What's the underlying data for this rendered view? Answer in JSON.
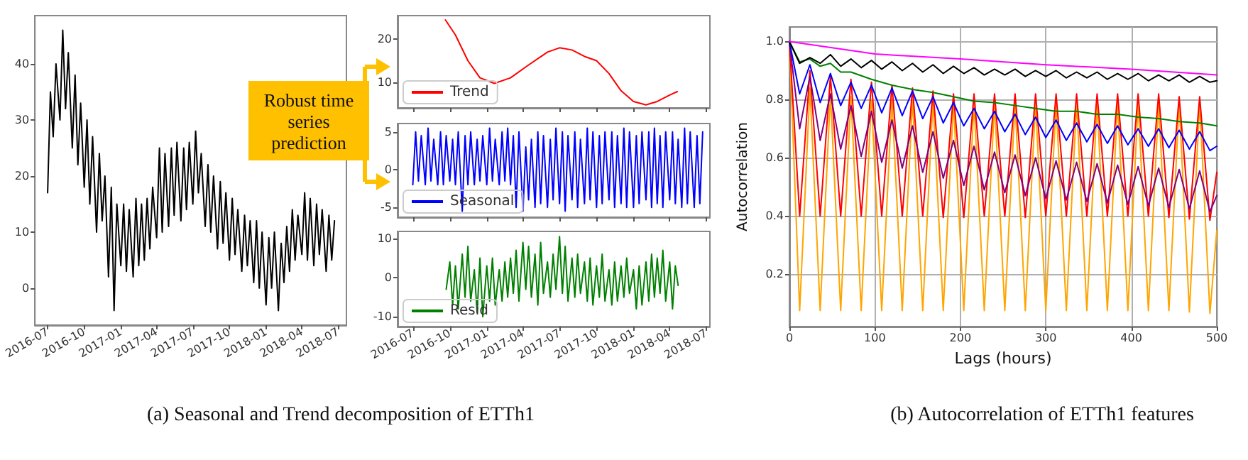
{
  "chart_data": [
    {
      "type": "line",
      "annotations": [
        "Robust time series prediction",
        "(a) Seasonal and Trend decomposition of ETTh1"
      ],
      "x": [
        "2016-07-01",
        "2016-07-08",
        "2016-07-15",
        "2016-07-22",
        "2016-08-01",
        "2016-08-08",
        "2016-08-15",
        "2016-08-22",
        "2016-09-01",
        "2016-09-08",
        "2016-09-15",
        "2016-09-22",
        "2016-10-01",
        "2016-10-08",
        "2016-10-15",
        "2016-10-22",
        "2016-11-01",
        "2016-11-08",
        "2016-11-15",
        "2016-11-22",
        "2016-12-01",
        "2016-12-08",
        "2016-12-15",
        "2016-12-22",
        "2017-01-01",
        "2017-01-08",
        "2017-01-15",
        "2017-01-22",
        "2017-02-01",
        "2017-02-08",
        "2017-02-15",
        "2017-02-22",
        "2017-03-01",
        "2017-03-08",
        "2017-03-15",
        "2017-03-22",
        "2017-04-01",
        "2017-04-08",
        "2017-04-15",
        "2017-04-22",
        "2017-05-01",
        "2017-05-08",
        "2017-05-15",
        "2017-05-22",
        "2017-06-01",
        "2017-06-08",
        "2017-06-15",
        "2017-06-22",
        "2017-07-01",
        "2017-07-08",
        "2017-07-15",
        "2017-07-22",
        "2017-08-01",
        "2017-08-08",
        "2017-08-15",
        "2017-08-22",
        "2017-09-01",
        "2017-09-08",
        "2017-09-15",
        "2017-09-22",
        "2017-10-01",
        "2017-10-08",
        "2017-10-15",
        "2017-10-22",
        "2017-11-01",
        "2017-11-08",
        "2017-11-15",
        "2017-11-22",
        "2017-12-01",
        "2017-12-08",
        "2017-12-15",
        "2017-12-22",
        "2018-01-01",
        "2018-01-08",
        "2018-01-15",
        "2018-01-22",
        "2018-02-01",
        "2018-02-08",
        "2018-02-15",
        "2018-02-22",
        "2018-03-01",
        "2018-03-08",
        "2018-03-15",
        "2018-03-22",
        "2018-04-01",
        "2018-04-08",
        "2018-04-15",
        "2018-04-22",
        "2018-05-01",
        "2018-05-08",
        "2018-05-15",
        "2018-05-22",
        "2018-06-01",
        "2018-06-08",
        "2018-06-15",
        "2018-06-22"
      ],
      "series": [
        {
          "color": "#000000",
          "values": [
            17,
            35,
            27,
            40,
            30,
            46,
            32,
            42,
            25,
            38,
            22,
            33,
            18,
            30,
            15,
            27,
            10,
            24,
            12,
            20,
            2,
            18,
            -4,
            15,
            4,
            15,
            3,
            14,
            2,
            16,
            4,
            15,
            5,
            16,
            7,
            18,
            9,
            25,
            10,
            24,
            11,
            25,
            13,
            26,
            12,
            25,
            14,
            26,
            15,
            28,
            17,
            24,
            11,
            22,
            10,
            20,
            7,
            19,
            8,
            17,
            5,
            16,
            6,
            14,
            3,
            13,
            4,
            12,
            1,
            12,
            0,
            10,
            -3,
            9,
            0,
            10,
            -4,
            8,
            1,
            11,
            3,
            14,
            5,
            13,
            6,
            17,
            5,
            16,
            4,
            15,
            6,
            14,
            3,
            13,
            5,
            12
          ]
        }
      ],
      "xlim": [
        "2016-05-30",
        "2018-07-22"
      ],
      "ylim": [
        -6.6,
        48.6
      ],
      "xticks": [
        "2016-07",
        "2016-10",
        "2017-01",
        "2017-04",
        "2017-07",
        "2017-10",
        "2018-01",
        "2018-04",
        "2018-07"
      ],
      "yticks": [
        0,
        10,
        20,
        30,
        40
      ]
    },
    {
      "type": "line",
      "legend": "lower left",
      "tick_labels": "y",
      "x": [
        "2016-09-20",
        "2016-10-15",
        "2016-11-15",
        "2016-12-15",
        "2017-01-20",
        "2017-03-01",
        "2017-04-15",
        "2017-06-01",
        "2017-07-01",
        "2017-08-01",
        "2017-09-01",
        "2017-10-01",
        "2017-11-01",
        "2017-12-01",
        "2018-01-01",
        "2018-02-01",
        "2018-03-01",
        "2018-04-01",
        "2018-04-20"
      ],
      "series": [
        {
          "name": "Trend",
          "color": "#ff0000",
          "values": [
            24.5,
            21,
            15,
            11,
            9.7,
            11,
            14,
            17,
            18,
            17.5,
            16,
            15,
            12,
            8,
            5.5,
            4.7,
            5.5,
            7,
            7.8
          ]
        }
      ],
      "xlim": [
        "2016-05-24",
        "2018-07-10"
      ],
      "ylim": [
        4,
        25.5
      ],
      "xticks": [
        "2016-07",
        "2016-10",
        "2017-01",
        "2017-04",
        "2017-07",
        "2017-10",
        "2018-01",
        "2018-04",
        "2018-07"
      ],
      "yticks": [
        10,
        20
      ]
    },
    {
      "type": "line",
      "legend": "lower left",
      "tick_labels": "y",
      "x": [
        "2016-07-01",
        "2016-07-08",
        "2016-07-15",
        "2016-07-22",
        "2016-08-01",
        "2016-08-08",
        "2016-08-15",
        "2016-08-22",
        "2016-09-01",
        "2016-09-08",
        "2016-09-15",
        "2016-09-22",
        "2016-10-01",
        "2016-10-08",
        "2016-10-15",
        "2016-10-22",
        "2016-11-01",
        "2016-11-08",
        "2016-11-15",
        "2016-11-22",
        "2016-12-01",
        "2016-12-08",
        "2016-12-15",
        "2016-12-22",
        "2017-01-01",
        "2017-01-08",
        "2017-01-15",
        "2017-01-22",
        "2017-02-01",
        "2017-02-08",
        "2017-02-15",
        "2017-02-22",
        "2017-03-01",
        "2017-03-08",
        "2017-03-15",
        "2017-03-22",
        "2017-04-01",
        "2017-04-08",
        "2017-04-15",
        "2017-04-22",
        "2017-05-01",
        "2017-05-08",
        "2017-05-15",
        "2017-05-22",
        "2017-06-01",
        "2017-06-08",
        "2017-06-15",
        "2017-06-22",
        "2017-07-01",
        "2017-07-08",
        "2017-07-15",
        "2017-07-22",
        "2017-08-01",
        "2017-08-08",
        "2017-08-15",
        "2017-08-22",
        "2017-09-01",
        "2017-09-08",
        "2017-09-15",
        "2017-09-22",
        "2017-10-01",
        "2017-10-08",
        "2017-10-15",
        "2017-10-22",
        "2017-11-01",
        "2017-11-08",
        "2017-11-15",
        "2017-11-22",
        "2017-12-01",
        "2017-12-08",
        "2017-12-15",
        "2017-12-22",
        "2018-01-01",
        "2018-01-08",
        "2018-01-15",
        "2018-01-22",
        "2018-02-01",
        "2018-02-08",
        "2018-02-15",
        "2018-02-22",
        "2018-03-01",
        "2018-03-08",
        "2018-03-15",
        "2018-03-22",
        "2018-04-01",
        "2018-04-08",
        "2018-04-15",
        "2018-04-22",
        "2018-05-01",
        "2018-05-08",
        "2018-05-15",
        "2018-05-22",
        "2018-06-01",
        "2018-06-08",
        "2018-06-15",
        "2018-06-22"
      ],
      "series": [
        {
          "name": "Seasonal",
          "color": "#0000ff",
          "values": [
            -2,
            5,
            -1.5,
            4.5,
            -2,
            5.5,
            -1.5,
            4,
            -2,
            5,
            -2,
            4.5,
            -1.5,
            4,
            -2,
            5,
            -5.5,
            4.5,
            -2,
            5,
            -2,
            4,
            -1.5,
            4.5,
            -2,
            5.5,
            -1.5,
            4,
            -2,
            5,
            -1.5,
            5.5,
            -2,
            4.5,
            -5,
            5,
            -5.5,
            3,
            -4,
            4,
            -5,
            5,
            -4.5,
            4.5,
            -5,
            4,
            -4,
            5.5,
            -4.5,
            5,
            -5.5,
            4.5,
            -4,
            5,
            -5,
            4,
            -4.5,
            5.5,
            -4,
            5,
            -5,
            4.5,
            -4.5,
            5,
            -4,
            5,
            -5,
            4.5,
            -4.5,
            5.5,
            -5,
            5,
            -5,
            4.5,
            -4.5,
            5,
            -4,
            5,
            -5,
            5.5,
            -4.5,
            4.5,
            -5,
            5,
            -4,
            5,
            -4.5,
            4,
            -5,
            5.5,
            -4.5,
            5,
            -5,
            4.5,
            -4.5,
            5
          ]
        }
      ],
      "xlim": [
        "2016-05-24",
        "2018-07-10"
      ],
      "ylim": [
        -6.3,
        6.1
      ],
      "xticks": [
        "2016-07",
        "2016-10",
        "2017-01",
        "2017-04",
        "2017-07",
        "2017-10",
        "2018-01",
        "2018-04",
        "2018-07"
      ],
      "yticks": [
        -5,
        0,
        5
      ]
    },
    {
      "type": "line",
      "legend": "lower left",
      "x": [
        "2016-09-22",
        "2016-10-01",
        "2016-10-08",
        "2016-10-15",
        "2016-10-22",
        "2016-11-01",
        "2016-11-08",
        "2016-11-15",
        "2016-11-22",
        "2016-12-01",
        "2016-12-08",
        "2016-12-15",
        "2016-12-22",
        "2017-01-01",
        "2017-01-08",
        "2017-01-15",
        "2017-01-22",
        "2017-02-01",
        "2017-02-08",
        "2017-02-15",
        "2017-02-22",
        "2017-03-01",
        "2017-03-08",
        "2017-03-15",
        "2017-03-22",
        "2017-04-01",
        "2017-04-08",
        "2017-04-15",
        "2017-04-22",
        "2017-05-01",
        "2017-05-08",
        "2017-05-15",
        "2017-05-22",
        "2017-06-01",
        "2017-06-08",
        "2017-06-15",
        "2017-06-22",
        "2017-07-01",
        "2017-07-08",
        "2017-07-15",
        "2017-07-22",
        "2017-08-01",
        "2017-08-08",
        "2017-08-15",
        "2017-08-22",
        "2017-09-01",
        "2017-09-08",
        "2017-09-15",
        "2017-09-22",
        "2017-10-01",
        "2017-10-08",
        "2017-10-15",
        "2017-10-22",
        "2017-11-01",
        "2017-11-08",
        "2017-11-15",
        "2017-11-22",
        "2017-12-01",
        "2017-12-08",
        "2017-12-15",
        "2017-12-22",
        "2018-01-01",
        "2018-01-08",
        "2018-01-15",
        "2018-01-22",
        "2018-02-01",
        "2018-02-08",
        "2018-02-15",
        "2018-02-22",
        "2018-03-01",
        "2018-03-08",
        "2018-03-15",
        "2018-03-22",
        "2018-04-01",
        "2018-04-08",
        "2018-04-15",
        "2018-04-22"
      ],
      "series": [
        {
          "name": "Resid",
          "color": "#008000",
          "values": [
            -3,
            4,
            -7,
            3,
            -8,
            6,
            -5,
            8,
            -6,
            2,
            -9,
            5,
            -10,
            3,
            -6,
            5,
            -7,
            2,
            -6,
            4,
            -5,
            5,
            -4,
            7,
            -6,
            9,
            -3,
            8,
            -5,
            6,
            -7,
            9,
            -4,
            4,
            -5,
            6,
            -3,
            10.5,
            -4,
            8,
            -6,
            5,
            -5,
            6,
            -4,
            4,
            -6,
            5,
            -7,
            3,
            -5,
            6,
            -6,
            2,
            -7,
            4,
            -6,
            3,
            -5,
            5,
            -4,
            2,
            -8,
            3,
            -7,
            4,
            -6,
            6,
            -5,
            5,
            -4,
            7,
            -6,
            4,
            -8,
            3,
            -2
          ]
        }
      ],
      "xlim": [
        "2016-05-24",
        "2018-07-10"
      ],
      "ylim": [
        -12.5,
        11.8
      ],
      "xticks": [
        "2016-07",
        "2016-10",
        "2017-01",
        "2017-04",
        "2017-07",
        "2017-10",
        "2018-01",
        "2018-04",
        "2018-07"
      ],
      "yticks": [
        -10,
        0,
        10
      ]
    },
    {
      "type": "line",
      "xlabel": "Lags (hours)",
      "ylabel": "Autocorrelation",
      "grid": true,
      "annotations": [
        "(b) Autocorrelation of ETTh1 features"
      ],
      "xlim": [
        0,
        500
      ],
      "ylim": [
        0.02,
        1.05
      ],
      "xticks": [
        0,
        100,
        200,
        300,
        400,
        500
      ],
      "yticks": [
        0.2,
        0.4,
        0.6,
        {
          "value": 0.8,
          "label": "0.8"
        },
        {
          "value": 1,
          "label": "1.0"
        }
      ],
      "series": [
        {
          "color": "#ffa500",
          "x": [
            0,
            12,
            24,
            36,
            48,
            60,
            72,
            84,
            96,
            108,
            120,
            132,
            144,
            156,
            168,
            180,
            192,
            204,
            216,
            228,
            240,
            252,
            264,
            276,
            288,
            300,
            312,
            324,
            336,
            348,
            360,
            372,
            384,
            396,
            408,
            420,
            432,
            444,
            456,
            468,
            480,
            492,
            500
          ],
          "values": [
            1,
            0.075,
            0.84,
            0.075,
            0.82,
            0.075,
            0.81,
            0.075,
            0.8,
            0.075,
            0.8,
            0.075,
            0.8,
            0.075,
            0.8,
            0.075,
            0.79,
            0.075,
            0.79,
            0.075,
            0.79,
            0.075,
            0.79,
            0.075,
            0.79,
            0.075,
            0.79,
            0.075,
            0.79,
            0.075,
            0.79,
            0.075,
            0.79,
            0.075,
            0.79,
            0.075,
            0.79,
            0.075,
            0.79,
            0.07,
            0.79,
            0.065,
            0.35
          ]
        },
        {
          "color": "#ff0000",
          "x": [
            0,
            12,
            24,
            36,
            48,
            60,
            72,
            84,
            96,
            108,
            120,
            132,
            144,
            156,
            168,
            180,
            192,
            204,
            216,
            228,
            240,
            252,
            264,
            276,
            288,
            300,
            312,
            324,
            336,
            348,
            360,
            372,
            384,
            396,
            408,
            420,
            432,
            444,
            456,
            468,
            480,
            492,
            500
          ],
          "values": [
            1,
            0.4,
            0.9,
            0.4,
            0.88,
            0.4,
            0.87,
            0.4,
            0.86,
            0.4,
            0.85,
            0.4,
            0.84,
            0.4,
            0.83,
            0.395,
            0.82,
            0.395,
            0.82,
            0.4,
            0.82,
            0.4,
            0.82,
            0.395,
            0.82,
            0.4,
            0.82,
            0.4,
            0.82,
            0.4,
            0.82,
            0.4,
            0.82,
            0.4,
            0.82,
            0.4,
            0.82,
            0.395,
            0.81,
            0.39,
            0.81,
            0.385,
            0.55
          ]
        },
        {
          "color": "#800080",
          "x": [
            0,
            12,
            24,
            36,
            48,
            60,
            72,
            84,
            96,
            108,
            120,
            132,
            144,
            156,
            168,
            180,
            192,
            204,
            216,
            228,
            240,
            252,
            264,
            276,
            288,
            300,
            312,
            324,
            336,
            348,
            360,
            372,
            384,
            396,
            408,
            420,
            432,
            444,
            456,
            468,
            480,
            492,
            500
          ],
          "values": [
            1,
            0.7,
            0.88,
            0.66,
            0.82,
            0.63,
            0.78,
            0.605,
            0.76,
            0.585,
            0.73,
            0.565,
            0.71,
            0.55,
            0.69,
            0.53,
            0.66,
            0.505,
            0.64,
            0.49,
            0.62,
            0.48,
            0.61,
            0.47,
            0.6,
            0.46,
            0.59,
            0.455,
            0.585,
            0.45,
            0.58,
            0.445,
            0.575,
            0.44,
            0.57,
            0.435,
            0.565,
            0.43,
            0.56,
            0.425,
            0.555,
            0.415,
            0.47
          ]
        },
        {
          "color": "#0000ff",
          "x": [
            0,
            12,
            24,
            36,
            48,
            60,
            72,
            84,
            96,
            108,
            120,
            132,
            144,
            156,
            168,
            180,
            192,
            204,
            216,
            228,
            240,
            252,
            264,
            276,
            288,
            300,
            312,
            324,
            336,
            348,
            360,
            372,
            384,
            396,
            408,
            420,
            432,
            444,
            456,
            468,
            480,
            492,
            500
          ],
          "values": [
            1,
            0.82,
            0.92,
            0.79,
            0.89,
            0.78,
            0.86,
            0.77,
            0.85,
            0.755,
            0.84,
            0.745,
            0.83,
            0.735,
            0.81,
            0.72,
            0.79,
            0.71,
            0.77,
            0.7,
            0.76,
            0.69,
            0.75,
            0.68,
            0.74,
            0.67,
            0.73,
            0.66,
            0.72,
            0.655,
            0.715,
            0.65,
            0.71,
            0.645,
            0.7,
            0.64,
            0.7,
            0.635,
            0.695,
            0.63,
            0.69,
            0.625,
            0.64
          ]
        },
        {
          "color": "#008000",
          "x": [
            0,
            12,
            24,
            36,
            48,
            60,
            72,
            96,
            120,
            144,
            168,
            192,
            216,
            240,
            264,
            288,
            312,
            336,
            360,
            384,
            408,
            432,
            456,
            480,
            500
          ],
          "values": [
            1,
            0.93,
            0.94,
            0.915,
            0.925,
            0.895,
            0.895,
            0.87,
            0.85,
            0.835,
            0.825,
            0.81,
            0.795,
            0.79,
            0.78,
            0.77,
            0.76,
            0.76,
            0.75,
            0.75,
            0.74,
            0.735,
            0.725,
            0.72,
            0.71
          ]
        },
        {
          "color": "#000000",
          "x": [
            0,
            12,
            24,
            36,
            48,
            60,
            72,
            84,
            96,
            108,
            120,
            132,
            144,
            156,
            168,
            180,
            192,
            204,
            216,
            228,
            240,
            252,
            264,
            276,
            288,
            300,
            312,
            324,
            336,
            348,
            360,
            372,
            384,
            396,
            408,
            420,
            432,
            444,
            456,
            468,
            480,
            492,
            500
          ],
          "values": [
            1,
            0.925,
            0.945,
            0.925,
            0.955,
            0.915,
            0.94,
            0.91,
            0.935,
            0.905,
            0.93,
            0.9,
            0.925,
            0.895,
            0.92,
            0.89,
            0.915,
            0.89,
            0.91,
            0.885,
            0.905,
            0.885,
            0.905,
            0.88,
            0.9,
            0.88,
            0.9,
            0.875,
            0.895,
            0.875,
            0.895,
            0.87,
            0.89,
            0.87,
            0.89,
            0.865,
            0.885,
            0.865,
            0.885,
            0.86,
            0.88,
            0.86,
            0.865
          ]
        },
        {
          "color": "#ff00ff",
          "x": [
            0,
            100,
            200,
            300,
            400,
            500
          ],
          "values": [
            1,
            0.957,
            0.94,
            0.92,
            0.905,
            0.885
          ]
        }
      ]
    }
  ]
}
